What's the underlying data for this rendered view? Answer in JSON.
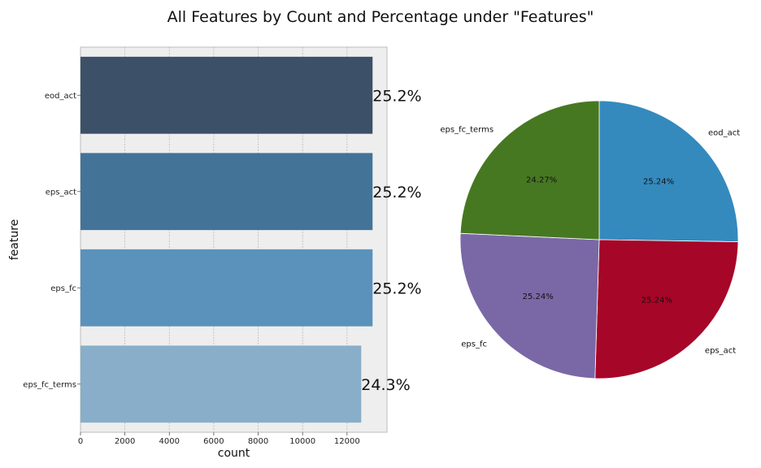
{
  "figure": {
    "title": "All Features by Count and Percentage under \"Features\""
  },
  "chart_data": [
    {
      "type": "bar",
      "orientation": "horizontal",
      "categories": [
        "eod_act",
        "eps_act",
        "eps_fc",
        "eps_fc_terms"
      ],
      "values": [
        13150,
        13150,
        13150,
        12640
      ],
      "bar_labels": [
        "25.2%",
        "25.2%",
        "25.2%",
        "24.3%"
      ],
      "xlabel": "count",
      "ylabel": "feature",
      "xlim": [
        0,
        13800
      ],
      "xticks": [
        0,
        2000,
        4000,
        6000,
        8000,
        10000,
        12000
      ],
      "grid": true,
      "colors": [
        "#3c5168",
        "#437498",
        "#5b92bb",
        "#88aec9"
      ],
      "background": "#eeeeee"
    },
    {
      "type": "pie",
      "labels": [
        "eod_act",
        "eps_act",
        "eps_fc",
        "eps_fc_terms"
      ],
      "values": [
        25.24,
        25.24,
        25.24,
        24.27
      ],
      "pct_labels": [
        "25.24%",
        "25.24%",
        "25.24%",
        "24.27%"
      ],
      "colors": [
        "#348abd",
        "#a60628",
        "#7a68a6",
        "#467821"
      ],
      "start_angle_deg": 90,
      "direction": "clockwise"
    }
  ]
}
